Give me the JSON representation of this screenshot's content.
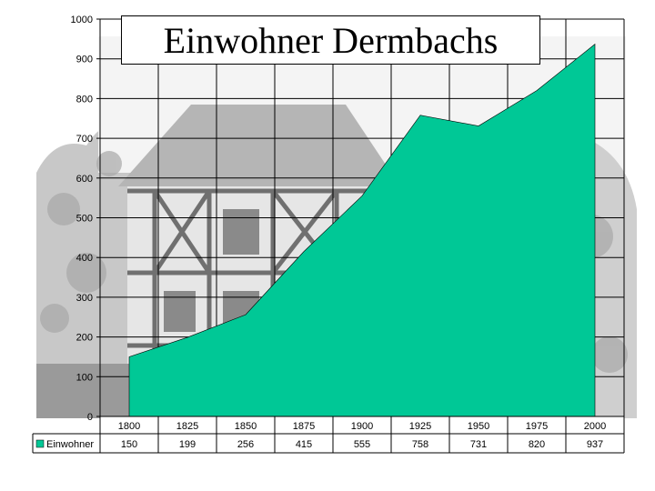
{
  "chart_data": {
    "type": "area",
    "title": "Einwohner Dermbachs",
    "xlabel": "",
    "ylabel": "",
    "categories": [
      "1800",
      "1825",
      "1850",
      "1875",
      "1900",
      "1925",
      "1950",
      "1975",
      "2000"
    ],
    "series": [
      {
        "name": "Einwohner",
        "values": [
          150,
          199,
          256,
          415,
          555,
          758,
          731,
          820,
          937
        ],
        "color": "#00c896"
      }
    ],
    "ylim": [
      0,
      1000
    ],
    "yticks": [
      0,
      100,
      200,
      300,
      400,
      500,
      600,
      700,
      800,
      900,
      1000
    ],
    "grid": true,
    "legend": "data-table-left",
    "background": "black-and-white photo of a half-timbered house and trees"
  }
}
